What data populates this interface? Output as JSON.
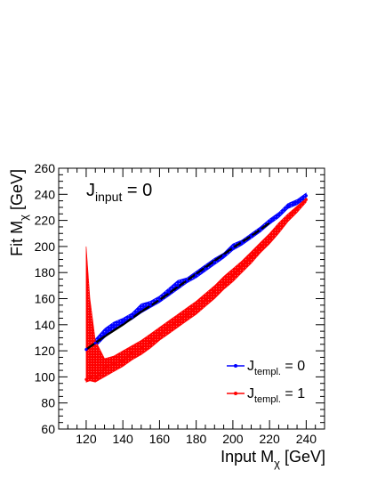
{
  "chart_data": {
    "type": "line",
    "annotation": {
      "main": "J",
      "sub": "input",
      "suffix": " = 0"
    },
    "xlabel": {
      "main": "Input M",
      "sub": "χ",
      "suffix": " [GeV]"
    },
    "ylabel": {
      "main": "Fit M",
      "sub": "χ",
      "suffix": " [GeV]"
    },
    "xlim": [
      105,
      250
    ],
    "ylim": [
      60,
      260
    ],
    "x_ticks": [
      120,
      140,
      160,
      180,
      200,
      220,
      240
    ],
    "y_ticks": [
      60,
      80,
      100,
      120,
      140,
      160,
      180,
      200,
      220,
      240,
      260
    ],
    "grid": false,
    "legend_position": "bottom-right",
    "series": [
      {
        "name": {
          "main": "J",
          "sub": "templ.",
          "suffix": " = 0"
        },
        "color": "#0000ff",
        "x": [
          120,
          125,
          130,
          135,
          140,
          145,
          150,
          155,
          160,
          165,
          170,
          175,
          180,
          185,
          190,
          195,
          200,
          205,
          210,
          215,
          220,
          225,
          230,
          235,
          240
        ],
        "y": [
          121,
          126,
          133,
          139,
          142,
          146,
          152,
          155,
          159,
          165,
          170,
          174,
          178,
          183,
          188,
          193,
          199,
          203,
          208,
          213,
          219,
          224,
          231,
          234,
          239
        ],
        "band_low": [
          119,
          123,
          130,
          136,
          140,
          144,
          149,
          153,
          157,
          162,
          167,
          172,
          176,
          181,
          186,
          191,
          197,
          201,
          206,
          211,
          217,
          222,
          229,
          232,
          237
        ],
        "band_high": [
          123,
          129,
          137,
          142,
          145,
          149,
          156,
          158,
          162,
          168,
          174,
          176,
          181,
          186,
          191,
          195,
          202,
          205,
          210,
          215,
          221,
          226,
          233,
          236,
          241
        ]
      },
      {
        "name": {
          "main": "J",
          "sub": "templ.",
          "suffix": " = 1"
        },
        "color": "#ff0000",
        "x": [
          120,
          122,
          125,
          130,
          135,
          140,
          145,
          150,
          155,
          160,
          165,
          170,
          175,
          180,
          185,
          190,
          195,
          200,
          205,
          210,
          215,
          220,
          225,
          230,
          235,
          240
        ],
        "y": [
          98,
          100,
          99,
          107,
          110,
          113,
          118,
          122,
          127,
          133,
          138,
          143,
          148,
          153,
          159,
          165,
          172,
          178,
          185,
          192,
          199,
          207,
          214,
          222,
          229,
          236
        ],
        "band_low": [
          96,
          97,
          96,
          100,
          104,
          108,
          113,
          117,
          122,
          128,
          133,
          138,
          143,
          148,
          154,
          160,
          167,
          173,
          180,
          187,
          195,
          202,
          210,
          219,
          226,
          234
        ],
        "band_high": [
          200,
          160,
          128,
          114,
          116,
          120,
          124,
          128,
          133,
          138,
          143,
          148,
          153,
          158,
          164,
          170,
          177,
          183,
          189,
          196,
          203,
          210,
          218,
          225,
          231,
          237
        ]
      }
    ],
    "black_curve": {
      "color": "#000000",
      "x": [
        120,
        130,
        140,
        150,
        160,
        170,
        180,
        190,
        200,
        210,
        220
      ],
      "y": [
        121,
        131,
        140,
        150,
        159,
        169,
        179,
        189,
        199,
        208,
        218
      ]
    }
  }
}
